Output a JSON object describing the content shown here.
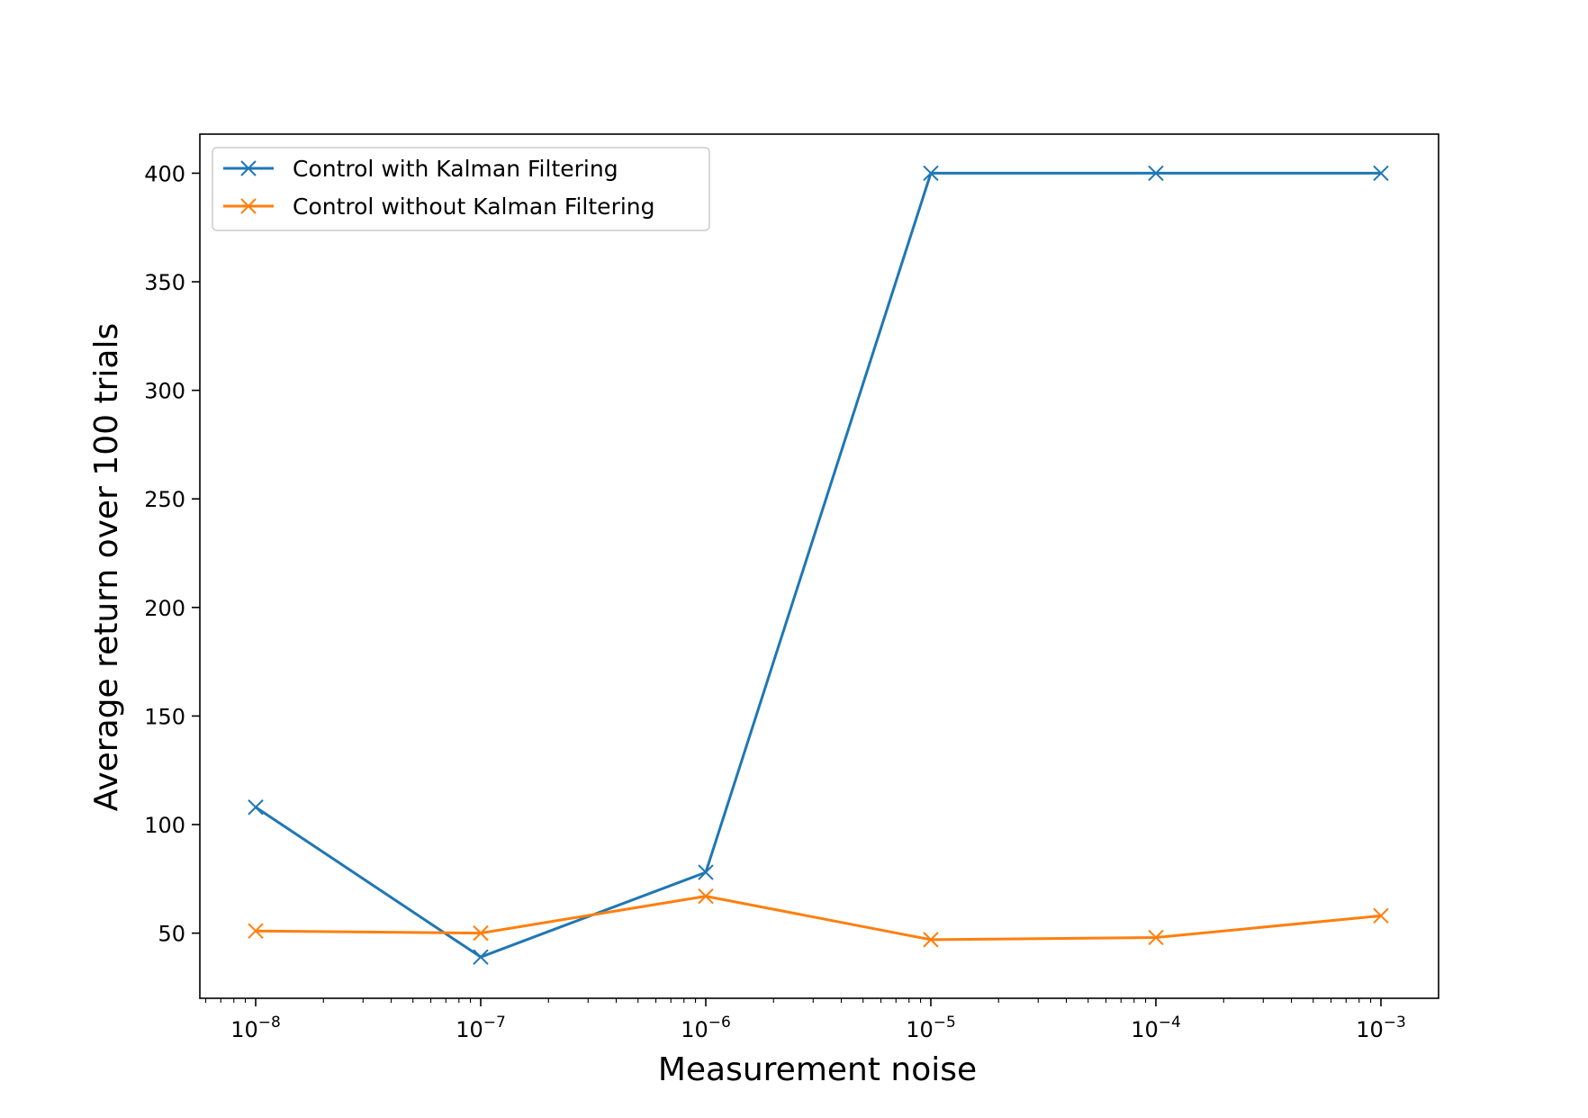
{
  "chart_data": {
    "type": "line",
    "title": "",
    "xlabel": "Measurement noise",
    "ylabel": "Average return over 100 trials",
    "x_scale": "log",
    "x": [
      1e-08,
      1e-07,
      1e-06,
      1e-05,
      0.0001,
      0.001
    ],
    "x_tick_labels": [
      {
        "base": "10",
        "exp": "−8"
      },
      {
        "base": "10",
        "exp": "−7"
      },
      {
        "base": "10",
        "exp": "−6"
      },
      {
        "base": "10",
        "exp": "−5"
      },
      {
        "base": "10",
        "exp": "−4"
      },
      {
        "base": "10",
        "exp": "−3"
      }
    ],
    "y_ticks": [
      50,
      100,
      150,
      200,
      250,
      300,
      350,
      400
    ],
    "y_tick_labels": [
      "50",
      "100",
      "150",
      "200",
      "250",
      "300",
      "350",
      "400"
    ],
    "ylim": [
      20,
      418
    ],
    "grid": false,
    "legend_position": "upper-left",
    "marker": "x",
    "series": [
      {
        "name": "Control with Kalman Filtering",
        "color": "#1f77b4",
        "values": [
          108,
          39,
          78,
          400,
          400,
          400
        ]
      },
      {
        "name": "Control without Kalman Filtering",
        "color": "#ff7f0e",
        "values": [
          51,
          50,
          67,
          47,
          48,
          58
        ]
      }
    ]
  }
}
